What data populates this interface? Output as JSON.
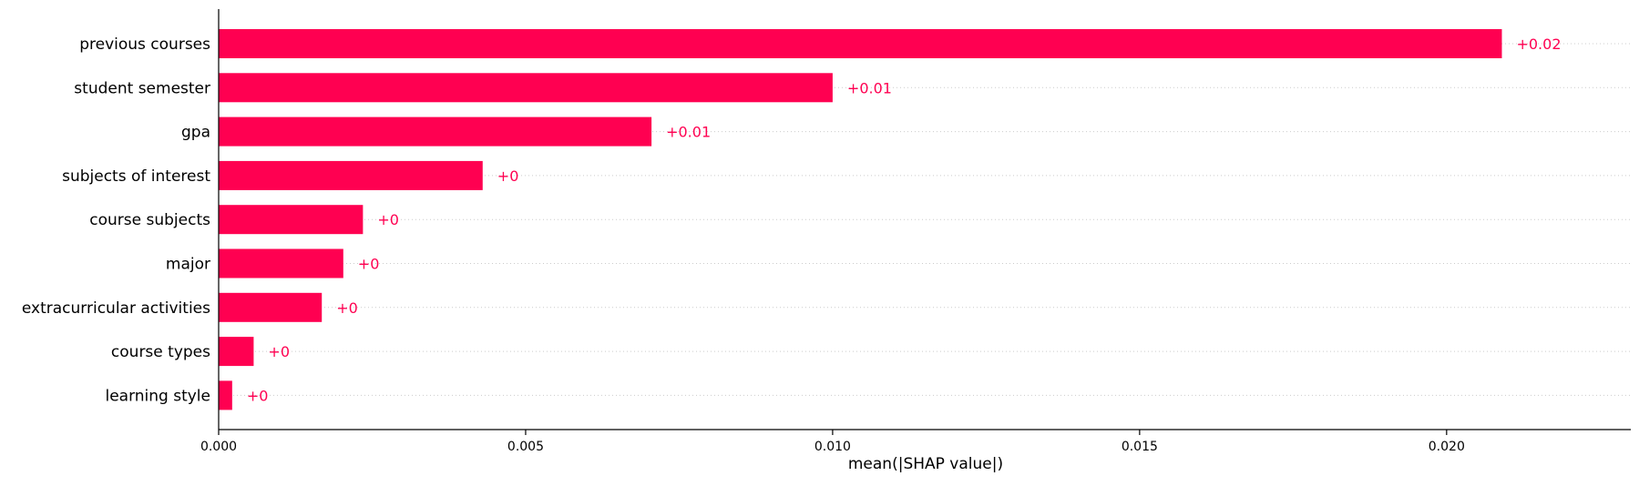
{
  "chart_data": {
    "type": "bar",
    "orientation": "horizontal",
    "categories": [
      "previous courses",
      "student semester",
      "gpa",
      "subjects of interest",
      "course subjects",
      "major",
      "extracurricular activities",
      "course types",
      "learning style"
    ],
    "values": [
      0.0209,
      0.01,
      0.00705,
      0.0043,
      0.00235,
      0.00203,
      0.00168,
      0.00057,
      0.00022
    ],
    "value_labels": [
      "+0.02",
      "+0.01",
      "+0.01",
      "+0",
      "+0",
      "+0",
      "+0",
      "+0",
      "+0"
    ],
    "xlabel": "mean(|SHAP value|)",
    "xlim": [
      0,
      0.023
    ],
    "xticks": [
      0,
      0.005,
      0.01,
      0.015,
      0.02
    ],
    "xtick_labels": [
      "0.000",
      "0.005",
      "0.010",
      "0.015",
      "0.020"
    ],
    "grid": "horizontal dotted guide lines per row",
    "bar_color": "#ff0051",
    "label_color": "#ff0051"
  }
}
